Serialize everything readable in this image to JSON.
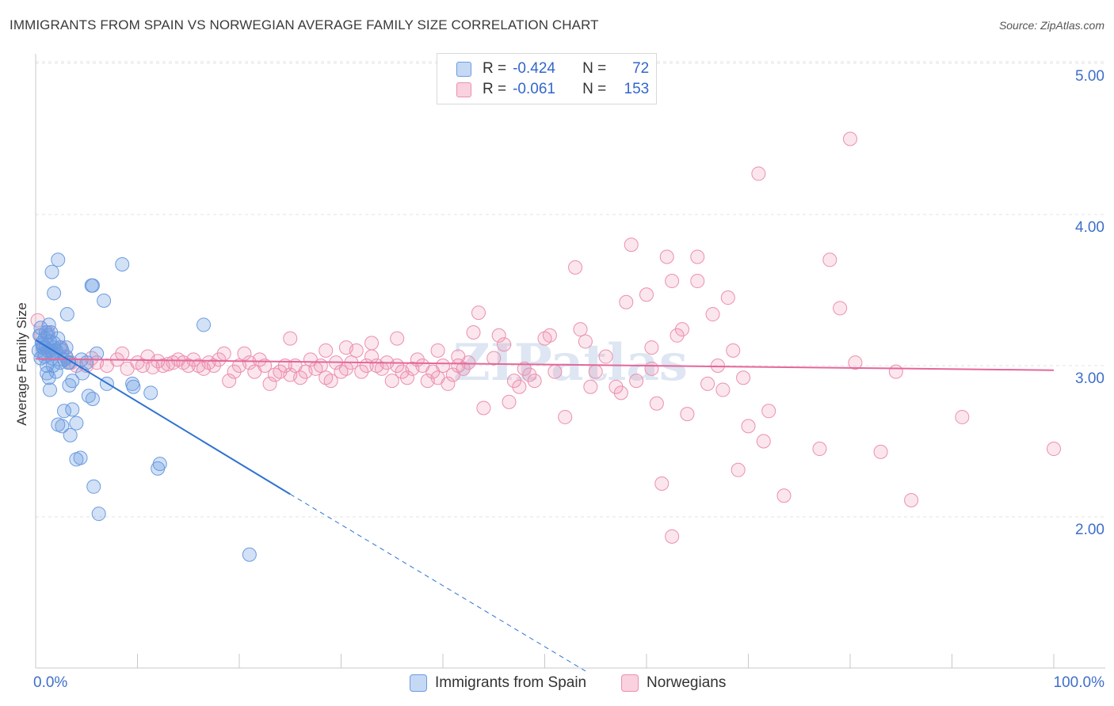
{
  "title": "IMMIGRANTS FROM SPAIN VS NORWEGIAN AVERAGE FAMILY SIZE CORRELATION CHART",
  "source": "Source: ZipAtlas.com",
  "legend": {
    "r_label": "R =",
    "n_label": "N =",
    "rows": [
      {
        "r": "-0.424",
        "n": "72"
      },
      {
        "r": "-0.061",
        "n": "153"
      }
    ]
  },
  "watermark": "ZIPatlas",
  "chart_data": {
    "type": "scatter",
    "title": "IMMIGRANTS FROM SPAIN VS NORWEGIAN AVERAGE FAMILY SIZE CORRELATION CHART",
    "xlabel": "",
    "ylabel": "Average Family Size",
    "xlim": [
      0,
      100
    ],
    "ylim": [
      1.0,
      5.1
    ],
    "x_tick_labels": [
      "0.0%",
      "100.0%"
    ],
    "y_ticks": [
      2.0,
      3.0,
      4.0,
      5.0
    ],
    "y_tick_labels": [
      "2.00",
      "3.00",
      "4.00",
      "5.00"
    ],
    "grid": true,
    "legend_position": "top-center",
    "colors": {
      "spain": "#6b9be0",
      "norway": "#ec8fae",
      "spain_line": "#2f72d1",
      "norway_line": "#e5679a"
    },
    "series": [
      {
        "name": "Immigrants from Spain",
        "r": -0.424,
        "n": 72,
        "trend": {
          "x0": 0,
          "y0": 3.17,
          "x1": 25,
          "y1": 2.15,
          "dashed_to_x": 54,
          "dashed_to_y": 0.98
        },
        "points": [
          [
            0.3,
            3.1
          ],
          [
            0.4,
            3.2
          ],
          [
            0.5,
            3.05
          ],
          [
            0.6,
            3.15
          ],
          [
            0.7,
            3.12
          ],
          [
            0.8,
            3.08
          ],
          [
            0.9,
            3.18
          ],
          [
            1.0,
            3.22
          ],
          [
            1.1,
            3.0
          ],
          [
            1.2,
            3.1
          ],
          [
            0.5,
            3.25
          ],
          [
            0.7,
            3.14
          ],
          [
            0.9,
            3.06
          ],
          [
            1.0,
            3.12
          ],
          [
            1.2,
            3.2
          ],
          [
            1.4,
            3.16
          ],
          [
            1.5,
            3.1
          ],
          [
            1.7,
            3.08
          ],
          [
            1.8,
            3.12
          ],
          [
            2.0,
            3.1
          ],
          [
            1.3,
            3.27
          ],
          [
            1.5,
            3.22
          ],
          [
            1.6,
            3.05
          ],
          [
            1.8,
            3.15
          ],
          [
            2.2,
            3.18
          ],
          [
            2.4,
            3.12
          ],
          [
            2.6,
            3.1
          ],
          [
            2.8,
            3.04
          ],
          [
            3.0,
            3.06
          ],
          [
            3.3,
            3.02
          ],
          [
            1.1,
            2.95
          ],
          [
            1.3,
            2.92
          ],
          [
            1.4,
            2.84
          ],
          [
            1.7,
            3.0
          ],
          [
            2.0,
            2.96
          ],
          [
            2.4,
            3.02
          ],
          [
            3.2,
            3.02
          ],
          [
            3.6,
            2.9
          ],
          [
            4.5,
            3.04
          ],
          [
            5.0,
            3.02
          ],
          [
            1.6,
            3.62
          ],
          [
            1.8,
            3.48
          ],
          [
            2.2,
            3.7
          ],
          [
            3.1,
            3.34
          ],
          [
            5.5,
            3.53
          ],
          [
            5.6,
            3.53
          ],
          [
            6.7,
            3.43
          ],
          [
            8.5,
            3.67
          ],
          [
            16.5,
            3.27
          ],
          [
            6.0,
            3.08
          ],
          [
            3.3,
            2.87
          ],
          [
            4.6,
            2.95
          ],
          [
            5.2,
            2.8
          ],
          [
            5.6,
            2.78
          ],
          [
            7.0,
            2.88
          ],
          [
            9.5,
            2.88
          ],
          [
            9.6,
            2.86
          ],
          [
            11.3,
            2.82
          ],
          [
            3.6,
            2.71
          ],
          [
            4.0,
            2.62
          ],
          [
            2.8,
            2.7
          ],
          [
            2.2,
            2.61
          ],
          [
            2.6,
            2.6
          ],
          [
            3.4,
            2.54
          ],
          [
            4.0,
            2.38
          ],
          [
            4.4,
            2.39
          ],
          [
            12.0,
            2.32
          ],
          [
            12.2,
            2.35
          ],
          [
            5.7,
            2.2
          ],
          [
            6.2,
            2.02
          ],
          [
            21.0,
            1.75
          ],
          [
            3.0,
            3.12
          ]
        ]
      },
      {
        "name": "Norwegians",
        "r": -0.061,
        "n": 153,
        "trend": {
          "x0": 0,
          "y0": 3.045,
          "x1": 100,
          "y1": 2.97
        },
        "points": [
          [
            0.2,
            3.3
          ],
          [
            0.5,
            3.2
          ],
          [
            0.8,
            3.12
          ],
          [
            1.2,
            3.22
          ],
          [
            1.5,
            3.1
          ],
          [
            2.0,
            3.08
          ],
          [
            2.5,
            3.12
          ],
          [
            3.0,
            3.05
          ],
          [
            3.5,
            3.02
          ],
          [
            4.0,
            3.0
          ],
          [
            5.0,
            3.0
          ],
          [
            5.5,
            3.05
          ],
          [
            6.0,
            3.02
          ],
          [
            7.0,
            3.0
          ],
          [
            8.0,
            3.04
          ],
          [
            8.5,
            3.08
          ],
          [
            9.0,
            2.98
          ],
          [
            10.0,
            3.02
          ],
          [
            10.5,
            3.0
          ],
          [
            11.0,
            3.06
          ],
          [
            11.5,
            2.99
          ],
          [
            12.0,
            3.03
          ],
          [
            12.5,
            3.0
          ],
          [
            13.0,
            3.01
          ],
          [
            13.5,
            3.02
          ],
          [
            14.0,
            3.04
          ],
          [
            14.5,
            3.02
          ],
          [
            15.0,
            3.0
          ],
          [
            15.5,
            3.04
          ],
          [
            16.0,
            3.0
          ],
          [
            16.5,
            2.98
          ],
          [
            17.0,
            3.02
          ],
          [
            17.5,
            3.0
          ],
          [
            18.0,
            3.04
          ],
          [
            18.5,
            3.08
          ],
          [
            19.0,
            2.9
          ],
          [
            19.5,
            2.96
          ],
          [
            20.0,
            3.0
          ],
          [
            20.5,
            3.08
          ],
          [
            21.0,
            3.02
          ],
          [
            21.5,
            2.96
          ],
          [
            22.0,
            3.04
          ],
          [
            22.5,
            3.0
          ],
          [
            23.0,
            2.88
          ],
          [
            23.5,
            2.94
          ],
          [
            24.0,
            2.96
          ],
          [
            24.5,
            3.0
          ],
          [
            25.0,
            2.94
          ],
          [
            25.5,
            3.0
          ],
          [
            26.0,
            2.92
          ],
          [
            26.5,
            2.96
          ],
          [
            27.0,
            3.04
          ],
          [
            27.5,
            2.98
          ],
          [
            28.0,
            3.0
          ],
          [
            28.5,
            2.92
          ],
          [
            29.0,
            2.9
          ],
          [
            29.5,
            3.02
          ],
          [
            30.0,
            2.96
          ],
          [
            30.5,
            2.98
          ],
          [
            31.0,
            3.02
          ],
          [
            31.5,
            3.1
          ],
          [
            32.0,
            2.96
          ],
          [
            32.5,
            3.0
          ],
          [
            33.0,
            3.06
          ],
          [
            33.5,
            3.0
          ],
          [
            34.0,
            2.98
          ],
          [
            34.5,
            3.02
          ],
          [
            35.0,
            2.9
          ],
          [
            35.5,
            3.0
          ],
          [
            36.0,
            2.96
          ],
          [
            36.5,
            2.92
          ],
          [
            37.0,
            2.98
          ],
          [
            37.5,
            3.04
          ],
          [
            38.0,
            3.0
          ],
          [
            38.5,
            2.9
          ],
          [
            39.0,
            2.96
          ],
          [
            39.5,
            2.92
          ],
          [
            40.0,
            3.0
          ],
          [
            40.5,
            2.88
          ],
          [
            41.0,
            2.94
          ],
          [
            41.5,
            3.0
          ],
          [
            42.0,
            2.98
          ],
          [
            42.5,
            3.02
          ],
          [
            25.0,
            3.18
          ],
          [
            28.5,
            3.1
          ],
          [
            30.5,
            3.12
          ],
          [
            33.0,
            3.15
          ],
          [
            35.5,
            3.18
          ],
          [
            39.5,
            3.1
          ],
          [
            41.5,
            3.06
          ],
          [
            43.0,
            3.22
          ],
          [
            43.5,
            3.35
          ],
          [
            44.0,
            2.72
          ],
          [
            45.0,
            3.05
          ],
          [
            45.5,
            3.2
          ],
          [
            46.0,
            3.14
          ],
          [
            46.5,
            2.76
          ],
          [
            47.0,
            2.9
          ],
          [
            47.5,
            2.86
          ],
          [
            48.0,
            2.98
          ],
          [
            48.5,
            2.94
          ],
          [
            49.0,
            2.9
          ],
          [
            50.0,
            3.18
          ],
          [
            50.5,
            3.2
          ],
          [
            51.0,
            2.96
          ],
          [
            52.0,
            2.66
          ],
          [
            53.0,
            3.65
          ],
          [
            53.5,
            3.24
          ],
          [
            54.0,
            3.16
          ],
          [
            54.5,
            2.86
          ],
          [
            55.0,
            2.96
          ],
          [
            56.0,
            3.06
          ],
          [
            57.0,
            2.86
          ],
          [
            57.5,
            2.82
          ],
          [
            58.0,
            3.42
          ],
          [
            58.5,
            3.8
          ],
          [
            59.0,
            2.9
          ],
          [
            60.0,
            3.47
          ],
          [
            60.5,
            3.12
          ],
          [
            60.5,
            2.98
          ],
          [
            61.0,
            2.75
          ],
          [
            62.0,
            3.72
          ],
          [
            62.5,
            3.56
          ],
          [
            63.0,
            3.2
          ],
          [
            63.5,
            3.24
          ],
          [
            64.0,
            2.68
          ],
          [
            65.0,
            3.72
          ],
          [
            65.0,
            3.56
          ],
          [
            66.0,
            2.88
          ],
          [
            66.5,
            3.34
          ],
          [
            67.0,
            3.0
          ],
          [
            67.5,
            2.84
          ],
          [
            68.0,
            3.45
          ],
          [
            68.5,
            3.1
          ],
          [
            70.0,
            2.6
          ],
          [
            71.0,
            4.27
          ],
          [
            71.5,
            2.5
          ],
          [
            72.0,
            2.7
          ],
          [
            73.5,
            2.14
          ],
          [
            77.0,
            2.45
          ],
          [
            78.0,
            3.7
          ],
          [
            79.0,
            3.38
          ],
          [
            80.0,
            4.5
          ],
          [
            80.5,
            3.02
          ],
          [
            83.0,
            2.43
          ],
          [
            84.5,
            2.96
          ],
          [
            86.0,
            2.11
          ],
          [
            91.0,
            2.66
          ],
          [
            100.0,
            2.45
          ],
          [
            61.5,
            2.22
          ],
          [
            62.5,
            1.87
          ],
          [
            69.0,
            2.31
          ],
          [
            69.5,
            2.92
          ]
        ]
      }
    ]
  },
  "bottom_legend": [
    "Immigrants from Spain",
    "Norwegians"
  ]
}
